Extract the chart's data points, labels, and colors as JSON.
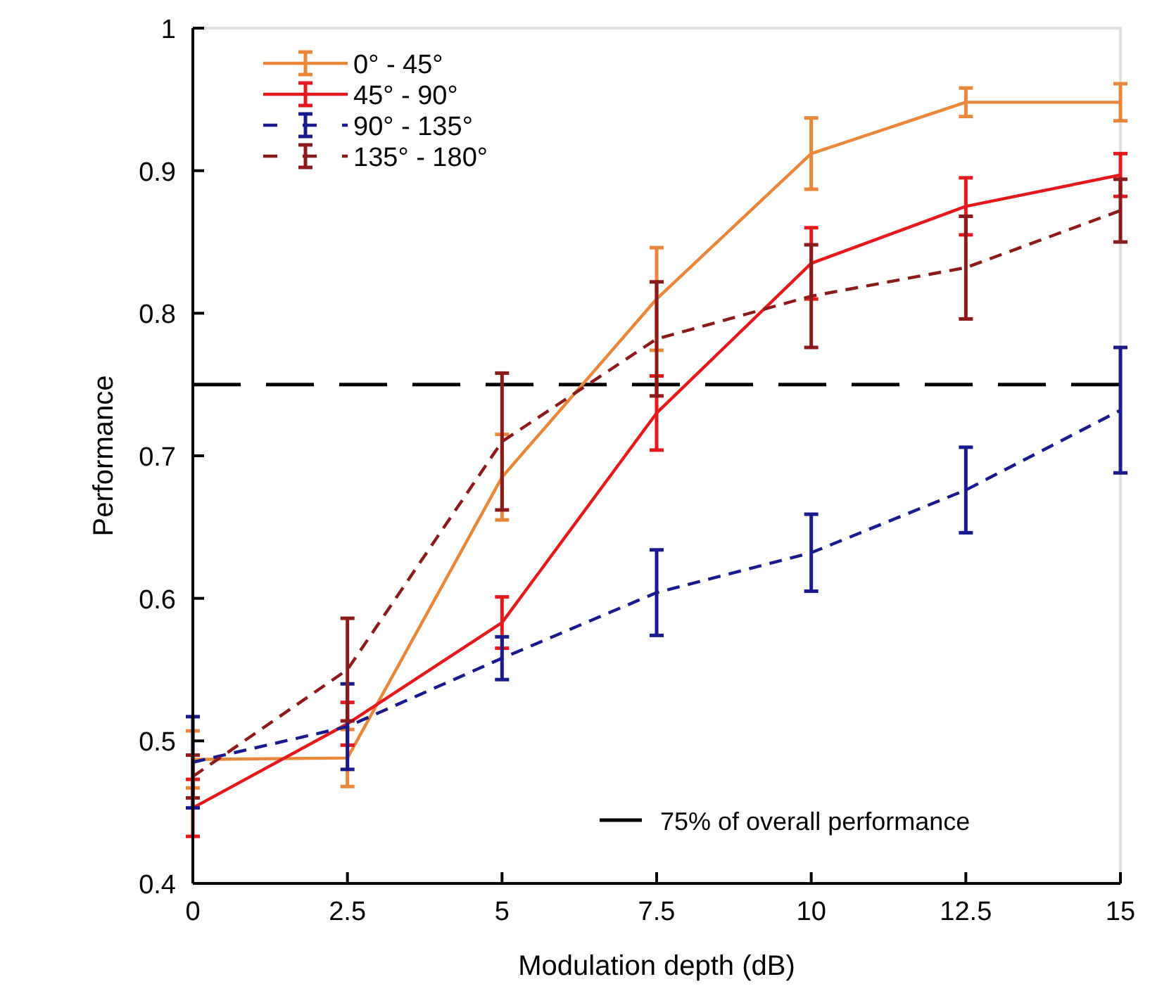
{
  "chart_data": {
    "type": "line",
    "xlabel": "Modulation depth (dB)",
    "ylabel": "Performance",
    "x": [
      0,
      2.5,
      5,
      7.5,
      10,
      12.5,
      15
    ],
    "xlim": [
      0,
      15
    ],
    "xticks": [
      0,
      2.5,
      5,
      7.5,
      10,
      12.5,
      15
    ],
    "ylim": [
      0.4,
      1
    ],
    "yticks": [
      0.4,
      0.5,
      0.6,
      0.7,
      0.8,
      0.9,
      1
    ],
    "legend": "top left",
    "marker": "none",
    "series": [
      {
        "name": "0° - 45°",
        "color": "#e8863a",
        "line_style": "solid",
        "values": [
          0.487,
          0.488,
          0.685,
          0.81,
          0.912,
          0.948,
          0.948
        ],
        "errors": [
          0.02,
          0.02,
          0.03,
          0.036,
          0.025,
          0.01,
          0.013
        ]
      },
      {
        "name": "45° - 90°",
        "color": "#e3191c",
        "line_style": "solid",
        "values": [
          0.453,
          0.512,
          0.583,
          0.73,
          0.835,
          0.875,
          0.897
        ],
        "errors": [
          0.02,
          0.015,
          0.018,
          0.026,
          0.025,
          0.02,
          0.015
        ]
      },
      {
        "name": "90° - 135°",
        "color": "#1a1a8c",
        "line_style": "dashed",
        "values": [
          0.485,
          0.51,
          0.558,
          0.604,
          0.632,
          0.676,
          0.732
        ],
        "errors": [
          0.032,
          0.03,
          0.015,
          0.03,
          0.027,
          0.03,
          0.044
        ]
      },
      {
        "name": "135° - 180°",
        "color": "#8b1a1a",
        "line_style": "dashed",
        "values": [
          0.475,
          0.55,
          0.71,
          0.782,
          0.812,
          0.832,
          0.872
        ],
        "errors": [
          0.015,
          0.036,
          0.048,
          0.04,
          0.036,
          0.036,
          0.022
        ]
      }
    ],
    "ref_lines": [
      {
        "axis": "y",
        "value": 0.75,
        "label": "75% of overall performance",
        "color": "#000000",
        "line_style": "dashed"
      }
    ]
  }
}
